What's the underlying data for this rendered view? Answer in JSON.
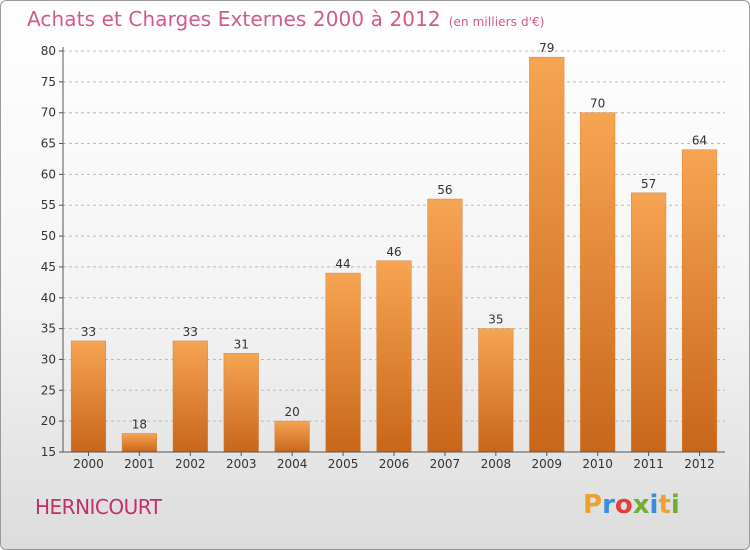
{
  "header": {
    "title": "Achats et Charges Externes 2000 à 2012",
    "subtitle": "(en milliers d'€)"
  },
  "footer": {
    "commune": "HERNICOURT",
    "logo_letters": [
      "P",
      "r",
      "o",
      "x",
      "i",
      "t",
      "i"
    ],
    "logo_colors": [
      "#f0a030",
      "#3a8de0",
      "#e04040",
      "#70b030",
      "#3a8de0",
      "#f0a030",
      "#70b030"
    ]
  },
  "chart_data": {
    "type": "bar",
    "title": "Achats et Charges Externes 2000 à 2012",
    "subtitle": "(en milliers d'€)",
    "categories": [
      "2000",
      "2001",
      "2002",
      "2003",
      "2004",
      "2005",
      "2006",
      "2007",
      "2008",
      "2009",
      "2010",
      "2011",
      "2012"
    ],
    "values": [
      33,
      18,
      33,
      31,
      20,
      44,
      46,
      56,
      35,
      79,
      70,
      57,
      64
    ],
    "data_labels": [
      "33",
      "18",
      "33",
      "31",
      "20",
      "44",
      "46",
      "56",
      "35",
      "79",
      "70",
      "57",
      "64"
    ],
    "ylim": [
      15,
      80
    ],
    "yticks": [
      15,
      20,
      25,
      30,
      35,
      40,
      45,
      50,
      55,
      60,
      65,
      70,
      75,
      80
    ],
    "xlabel": "",
    "ylabel": "",
    "grid": "horizontal dashed",
    "colors": {
      "bar_top": "#f6a552",
      "bar_bottom": "#c8661a",
      "grid": "#bbbbbb",
      "axis": "#555555"
    }
  }
}
